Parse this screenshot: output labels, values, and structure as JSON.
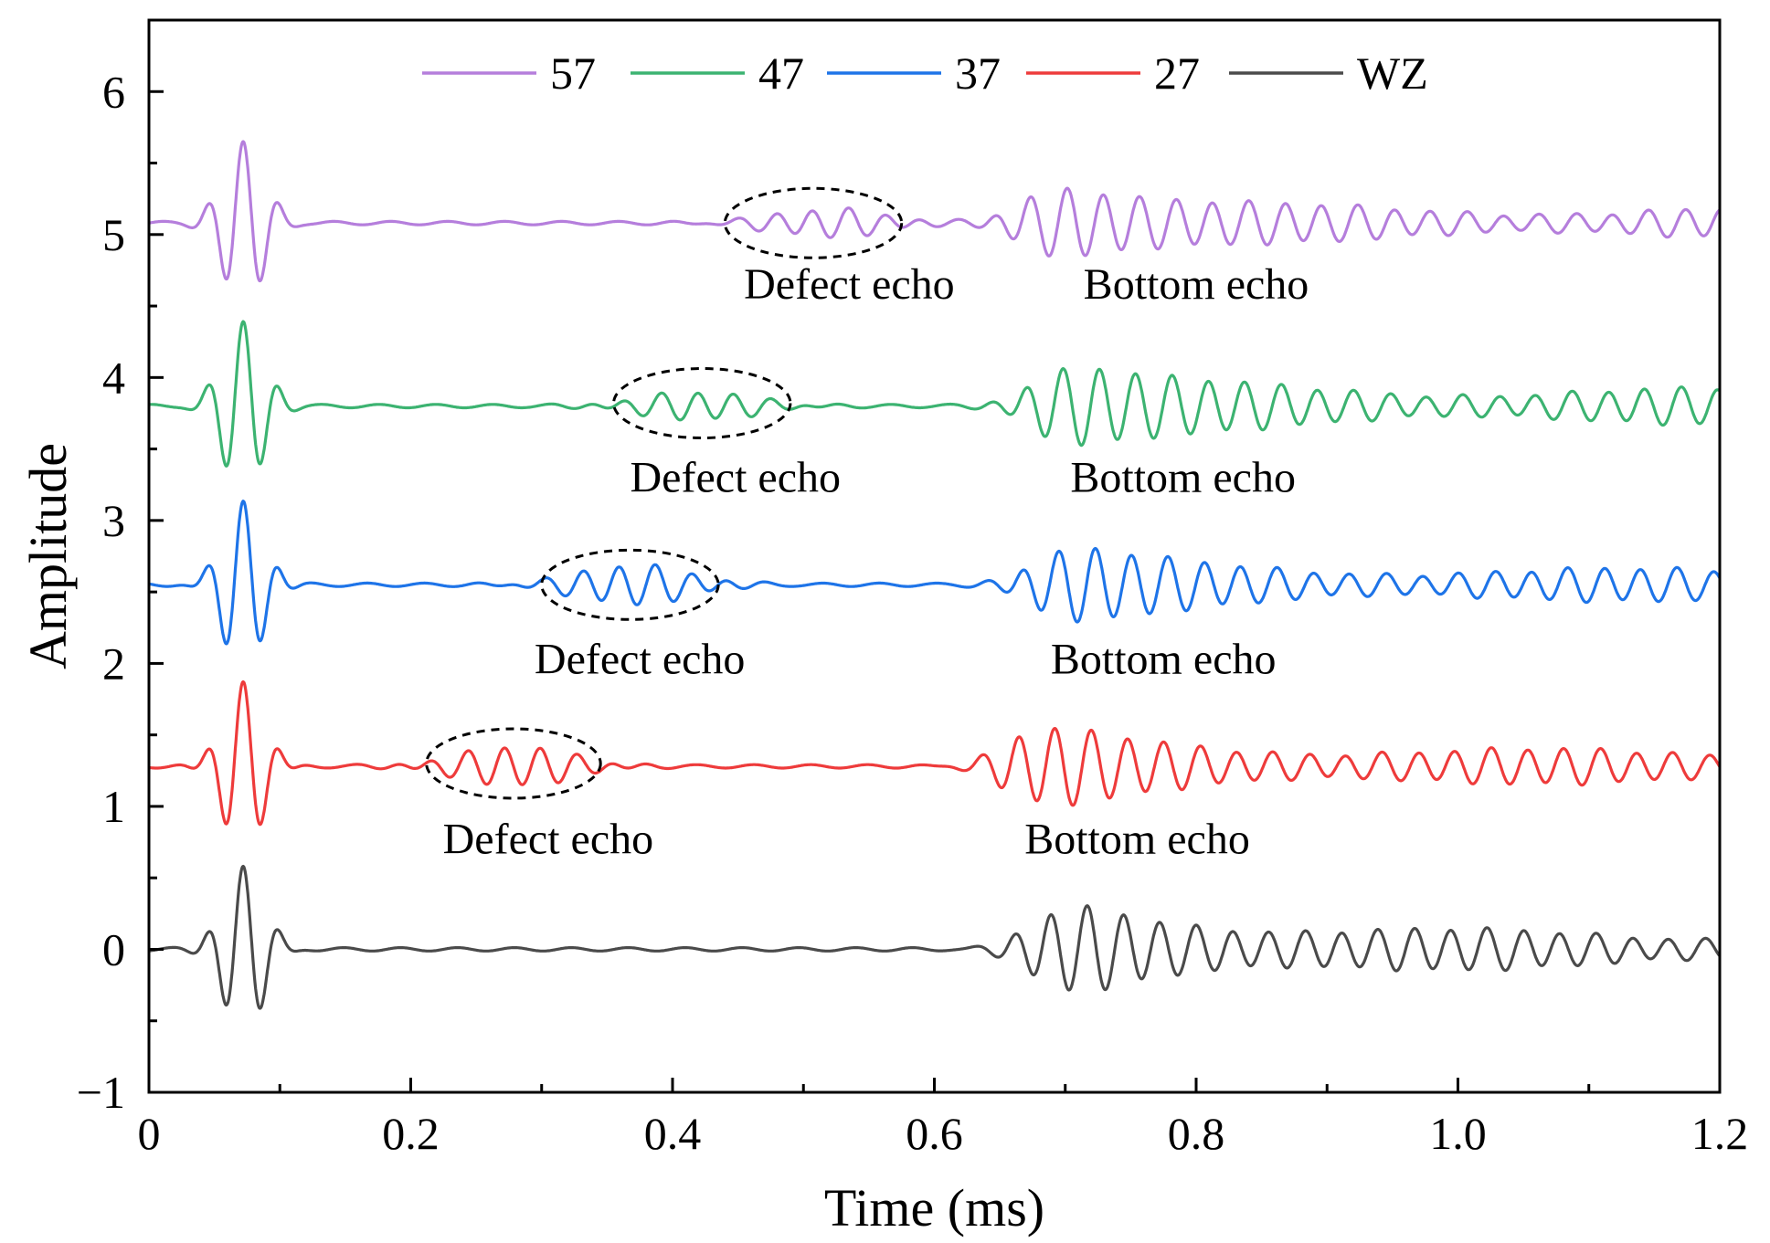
{
  "chart_data": {
    "type": "line",
    "title": "",
    "xlabel": "Time (ms)",
    "ylabel": "Amplitude",
    "xlim": [
      0,
      1.2
    ],
    "ylim": [
      -1,
      6.5
    ],
    "x_ticks": [
      0,
      0.2,
      0.4,
      0.6,
      0.8,
      1.0,
      1.2
    ],
    "x_tick_labels": [
      "0",
      "0.2",
      "0.4",
      "0.6",
      "0.8",
      "1.0",
      "1.2"
    ],
    "y_ticks": [
      -1,
      0,
      1,
      2,
      3,
      4,
      5,
      6
    ],
    "y_tick_labels": [
      "−1",
      "0",
      "1",
      "2",
      "3",
      "4",
      "5",
      "6"
    ],
    "grid": false,
    "legend_position": "top",
    "series": [
      {
        "name": "57",
        "color": "#b57edc",
        "baseline": 5.08,
        "pulse_amp": 0.58,
        "defect_center_ms": 0.52,
        "defect_amp": 0.1,
        "bottom_center_ms": 0.71,
        "bottom_amp": 0.3
      },
      {
        "name": "47",
        "color": "#3cb371",
        "baseline": 3.8,
        "pulse_amp": 0.6,
        "defect_center_ms": 0.42,
        "defect_amp": 0.1,
        "bottom_center_ms": 0.72,
        "bottom_amp": 0.33
      },
      {
        "name": "37",
        "color": "#1e74e8",
        "baseline": 2.55,
        "pulse_amp": 0.58,
        "defect_center_ms": 0.37,
        "defect_amp": 0.14,
        "bottom_center_ms": 0.72,
        "bottom_amp": 0.3
      },
      {
        "name": "27",
        "color": "#ee3b3b",
        "baseline": 1.28,
        "pulse_amp": 0.58,
        "defect_center_ms": 0.28,
        "defect_amp": 0.14,
        "bottom_center_ms": 0.7,
        "bottom_amp": 0.32
      },
      {
        "name": "WZ",
        "color": "#4a4a4a",
        "baseline": 0.0,
        "pulse_amp": 0.58,
        "defect_center_ms": null,
        "defect_amp": 0,
        "bottom_center_ms": 0.72,
        "bottom_amp": 0.36
      }
    ],
    "annotations": [
      {
        "series": "57",
        "defect_label": "Defect echo",
        "bottom_label": "Bottom echo",
        "defect_ellipse_x": [
          0.44,
          0.575
        ],
        "defect_ellipse_y_center": 5.08,
        "defect_label_x": 0.535,
        "bottom_label_x": 0.8,
        "label_y": 4.55
      },
      {
        "series": "47",
        "defect_label": "Defect echo",
        "bottom_label": "Bottom echo",
        "defect_ellipse_x": [
          0.355,
          0.49
        ],
        "defect_ellipse_y_center": 3.82,
        "defect_label_x": 0.448,
        "bottom_label_x": 0.79,
        "label_y": 3.2
      },
      {
        "series": "37",
        "defect_label": "Defect echo",
        "bottom_label": "Bottom echo",
        "defect_ellipse_x": [
          0.3,
          0.435
        ],
        "defect_ellipse_y_center": 2.55,
        "defect_label_x": 0.375,
        "bottom_label_x": 0.775,
        "label_y": 1.93
      },
      {
        "series": "27",
        "defect_label": "Defect echo",
        "bottom_label": "Bottom echo",
        "defect_ellipse_x": [
          0.212,
          0.345
        ],
        "defect_ellipse_y_center": 1.3,
        "defect_label_x": 0.305,
        "bottom_label_x": 0.755,
        "label_y": 0.67
      }
    ]
  }
}
